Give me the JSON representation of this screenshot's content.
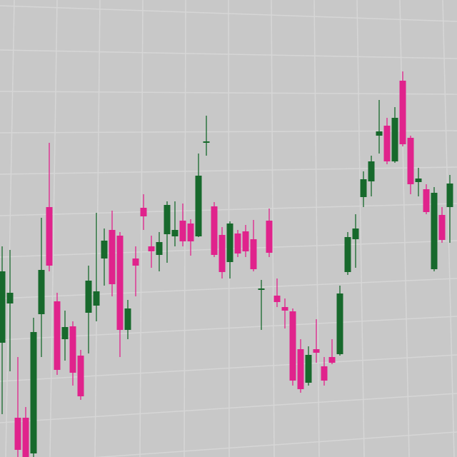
{
  "chart_data": {
    "type": "candlestick",
    "open": [
      160,
      215,
      55,
      55,
      5,
      200,
      350,
      218,
      165,
      183,
      142,
      202,
      212,
      278,
      318,
      310,
      178,
      278,
      349,
      295,
      283,
      312,
      309,
      331,
      327,
      309,
      440,
      351,
      311,
      273,
      313,
      316,
      305,
      234,
      331,
      226,
      210,
      204,
      151,
      104,
      151,
      127,
      140,
      144,
      259,
      305,
      364,
      386,
      450,
      464,
      414,
      527,
      447,
      385,
      375,
      263,
      339,
      350
    ],
    "high": [
      295,
      290,
      140,
      70,
      195,
      335,
      440,
      230,
      205,
      190,
      150,
      268,
      342,
      320,
      345,
      315,
      220,
      295,
      368,
      310,
      315,
      358,
      358,
      355,
      333,
      425,
      478,
      357,
      322,
      330,
      318,
      325,
      332,
      248,
      348,
      250,
      222,
      208,
      165,
      155,
      193,
      140,
      165,
      240,
      315,
      340,
      400,
      422,
      500,
      475,
      490,
      540,
      450,
      405,
      382,
      378,
      350,
      395
    ],
    "low": [
      60,
      120,
      0,
      0,
      0,
      140,
      260,
      115,
      135,
      100,
      80,
      145,
      190,
      240,
      225,
      140,
      165,
      225,
      318,
      265,
      260,
      272,
      295,
      295,
      282,
      308,
      422,
      280,
      250,
      250,
      280,
      280,
      260,
      178,
      280,
      210,
      180,
      100,
      90,
      100,
      132,
      100,
      130,
      142,
      255,
      265,
      350,
      365,
      425,
      410,
      412,
      435,
      368,
      365,
      340,
      260,
      300,
      300
    ],
    "close": [
      260,
      230,
      10,
      0,
      175,
      262,
      268,
      122,
      182,
      118,
      85,
      247,
      232,
      303,
      242,
      178,
      208,
      268,
      337,
      288,
      301,
      353,
      318,
      302,
      302,
      394,
      442,
      283,
      259,
      327,
      285,
      288,
      263,
      236,
      286,
      217,
      205,
      107,
      95,
      143,
      146,
      107,
      132,
      229,
      308,
      320,
      389,
      414,
      456,
      414,
      475,
      438,
      382,
      390,
      343,
      370,
      304,
      383
    ],
    "up_color": "#17692c",
    "down_color": "#e0238c",
    "ylim": [
      0,
      640
    ],
    "grid": true
  }
}
